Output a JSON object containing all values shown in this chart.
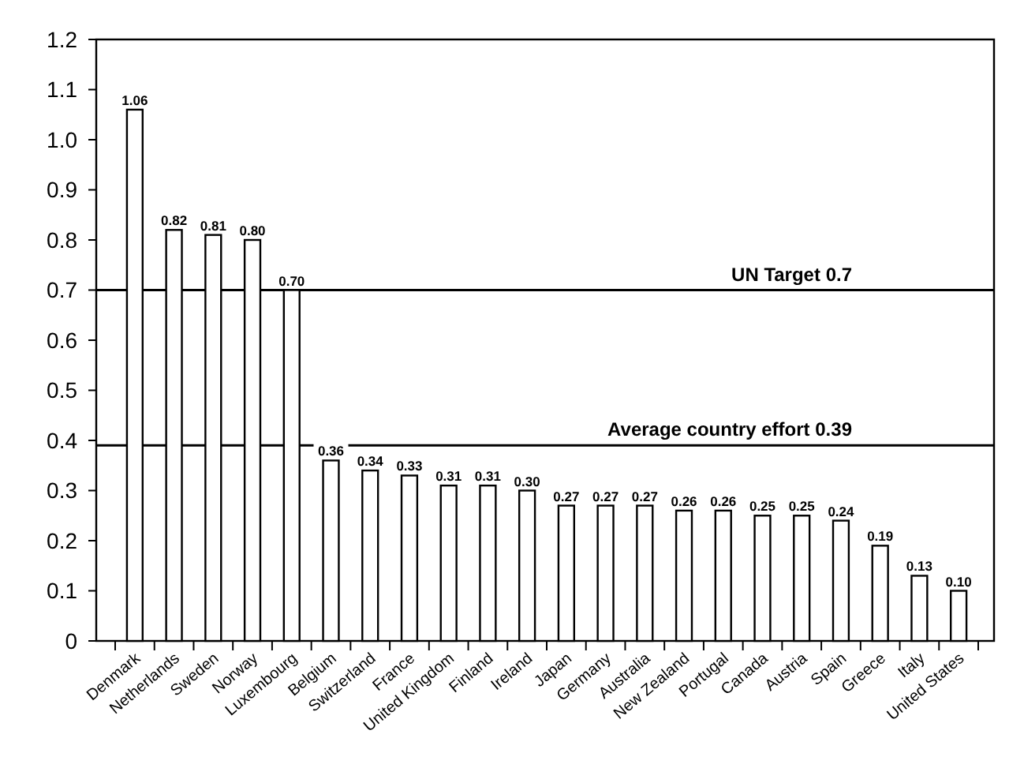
{
  "chart_data": {
    "type": "bar",
    "categories": [
      "Denmark",
      "Netherlands",
      "Sweden",
      "Norway",
      "Luxembourg",
      "Belgium",
      "Switzerland",
      "France",
      "United Kingdom",
      "Finland",
      "Ireland",
      "Japan",
      "Germany",
      "Australia",
      "New Zealand",
      "Portugal",
      "Canada",
      "Austria",
      "Spain",
      "Greece",
      "Italy",
      "United States"
    ],
    "values": [
      1.06,
      0.82,
      0.81,
      0.8,
      0.7,
      0.36,
      0.34,
      0.33,
      0.31,
      0.31,
      0.3,
      0.27,
      0.27,
      0.27,
      0.26,
      0.26,
      0.25,
      0.25,
      0.24,
      0.19,
      0.13,
      0.1
    ],
    "value_labels": [
      "1.06",
      "0.82",
      "0.81",
      "0.80",
      "0.70",
      "0.36",
      "0.34",
      "0.33",
      "0.31",
      "0.31",
      "0.30",
      "0.27",
      "0.27",
      "0.27",
      "0.26",
      "0.26",
      "0.25",
      "0.25",
      "0.24",
      "0.19",
      "0.13",
      "0.10"
    ],
    "color": "#ffffff",
    "ylim": [
      0,
      1.2
    ],
    "yticks": [
      0,
      0.1,
      0.2,
      0.3,
      0.4,
      0.5,
      0.6,
      0.7,
      0.8,
      0.9,
      {
        "value": 1,
        "label": "1.0"
      },
      1.1,
      1.2
    ],
    "ref_lines": [
      {
        "axis": "y",
        "value": 0.7,
        "label": "UN Target 0.7",
        "color": "#000000"
      },
      {
        "axis": "y",
        "value": 0.39,
        "label": "Average country effort 0.39",
        "color": "#000000"
      }
    ],
    "grid": false
  }
}
